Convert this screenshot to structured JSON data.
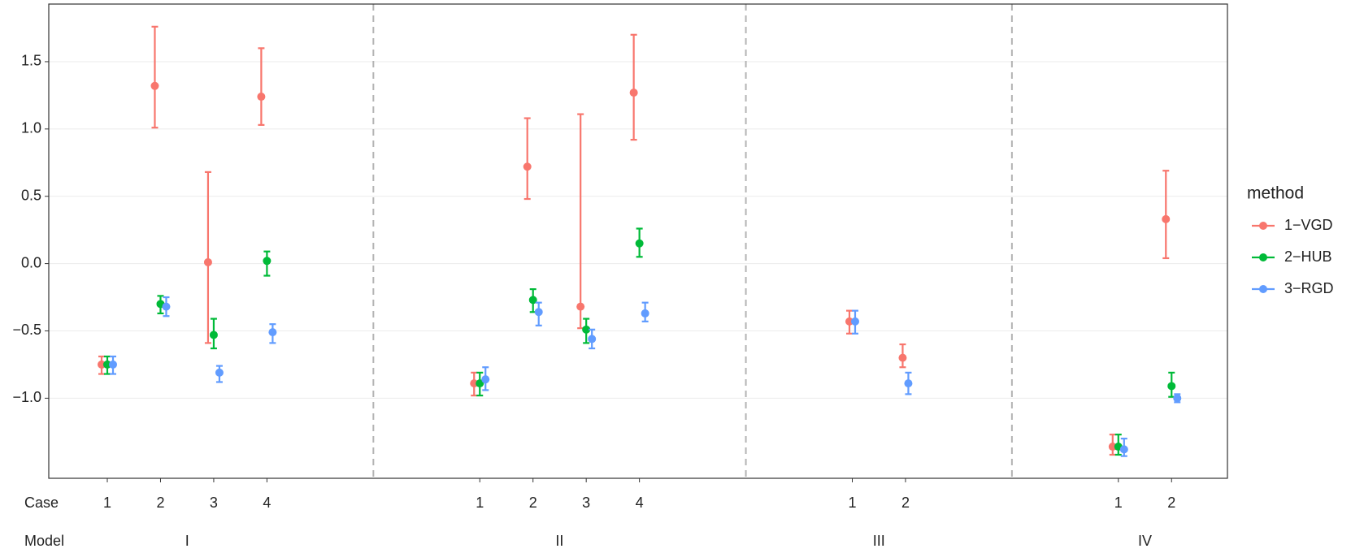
{
  "chart_data": {
    "type": "errorbar",
    "x_axis_labels": [
      "Case",
      "Model"
    ],
    "groups": [
      {
        "model": "I",
        "cases": [
          "1",
          "2",
          "3",
          "4"
        ]
      },
      {
        "model": "II",
        "cases": [
          "1",
          "2",
          "3",
          "4"
        ]
      },
      {
        "model": "III",
        "cases": [
          "1",
          "2"
        ]
      },
      {
        "model": "IV",
        "cases": [
          "1",
          "2"
        ]
      }
    ],
    "legend_title": "method",
    "legend_position": "right",
    "series": [
      {
        "name": "1−VGD",
        "color": "#f8766d",
        "values": [
          -0.75,
          1.32,
          0.01,
          1.24,
          -0.89,
          0.72,
          -0.32,
          1.27,
          -0.43,
          -0.7,
          -1.36,
          0.33
        ],
        "lower": [
          -0.82,
          1.01,
          -0.59,
          1.03,
          -0.98,
          0.48,
          -0.48,
          0.92,
          -0.52,
          -0.77,
          -1.42,
          0.04
        ],
        "upper": [
          -0.69,
          1.76,
          0.68,
          1.6,
          -0.81,
          1.08,
          1.11,
          1.7,
          -0.35,
          -0.6,
          -1.27,
          0.69
        ]
      },
      {
        "name": "2−HUB",
        "color": "#00ba38",
        "values": [
          -0.75,
          -0.3,
          -0.53,
          0.02,
          -0.89,
          -0.27,
          -0.49,
          0.15,
          null,
          null,
          -1.36,
          -0.91
        ],
        "lower": [
          -0.82,
          -0.37,
          -0.63,
          -0.09,
          -0.98,
          -0.36,
          -0.59,
          0.05,
          null,
          null,
          -1.42,
          -0.99
        ],
        "upper": [
          -0.69,
          -0.24,
          -0.41,
          0.09,
          -0.81,
          -0.19,
          -0.41,
          0.26,
          null,
          null,
          -1.27,
          -0.81
        ]
      },
      {
        "name": "3−RGD",
        "color": "#619cff",
        "values": [
          -0.75,
          -0.32,
          -0.81,
          -0.51,
          -0.86,
          -0.36,
          -0.56,
          -0.37,
          -0.43,
          -0.89,
          -1.38,
          -1.0
        ],
        "lower": [
          -0.82,
          -0.39,
          -0.88,
          -0.59,
          -0.94,
          -0.46,
          -0.63,
          -0.43,
          -0.52,
          -0.97,
          -1.43,
          -1.03
        ],
        "upper": [
          -0.69,
          -0.25,
          -0.76,
          -0.45,
          -0.77,
          -0.29,
          -0.49,
          -0.29,
          -0.35,
          -0.81,
          -1.3,
          -0.97
        ]
      }
    ],
    "ylim": [
      -1.595,
      1.928
    ],
    "yticks": [
      {
        "value": -1,
        "label": "−1.0"
      },
      {
        "value": -0.5,
        "label": "−0.5"
      },
      {
        "value": 0,
        "label": "0.0"
      },
      0.5,
      {
        "value": 1,
        "label": "1.0"
      },
      1.5
    ],
    "grid": true
  }
}
